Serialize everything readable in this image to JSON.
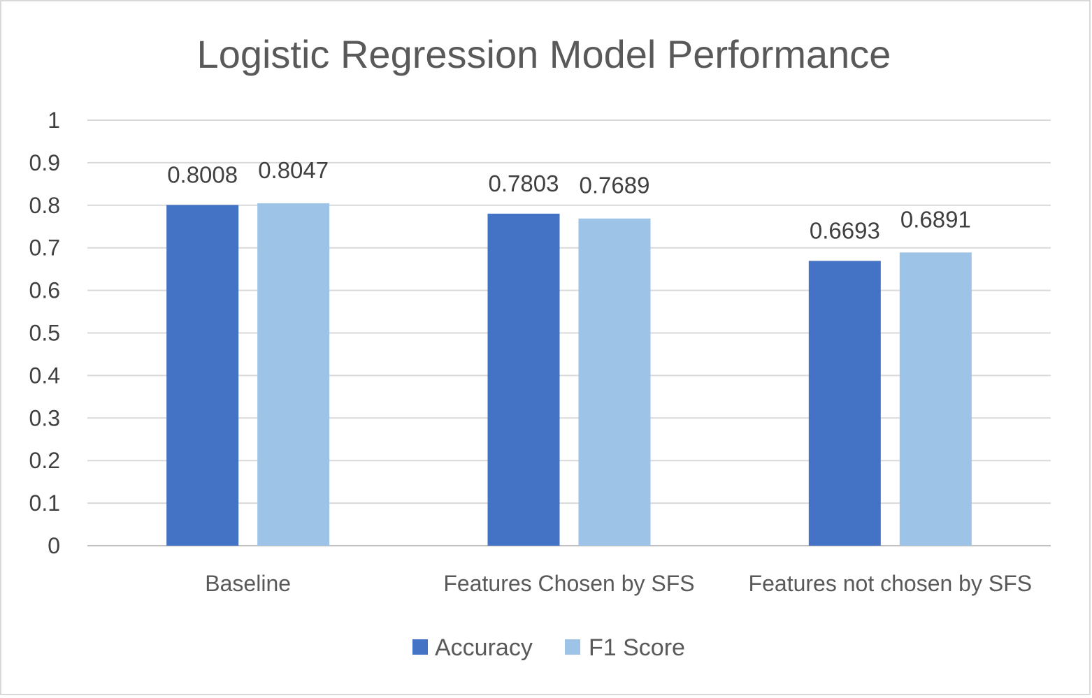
{
  "chart_data": {
    "type": "bar",
    "title": "Logistic Regression Model Performance",
    "xlabel": "",
    "ylabel": "",
    "ylim": [
      0,
      1
    ],
    "yticks": [
      0,
      0.1,
      0.2,
      0.3,
      0.4,
      0.5,
      0.6,
      0.7,
      0.8,
      0.9,
      1
    ],
    "ytick_labels": [
      "0",
      "0.1",
      "0.2",
      "0.3",
      "0.4",
      "0.5",
      "0.6",
      "0.7",
      "0.8",
      "0.9",
      "1"
    ],
    "grid": true,
    "legend_position": "bottom",
    "categories": [
      "Baseline",
      "Features Chosen by SFS",
      "Features not chosen by SFS"
    ],
    "series": [
      {
        "name": "Accuracy",
        "color": "#4472C4",
        "values": [
          0.8008,
          0.7803,
          0.6693
        ],
        "labels": [
          "0.8008",
          "0.7803",
          "0.6693"
        ]
      },
      {
        "name": "F1 Score",
        "color": "#9DC3E6",
        "values": [
          0.8047,
          0.7689,
          0.6891
        ],
        "labels": [
          "0.8047",
          "0.7689",
          "0.6891"
        ]
      }
    ]
  }
}
